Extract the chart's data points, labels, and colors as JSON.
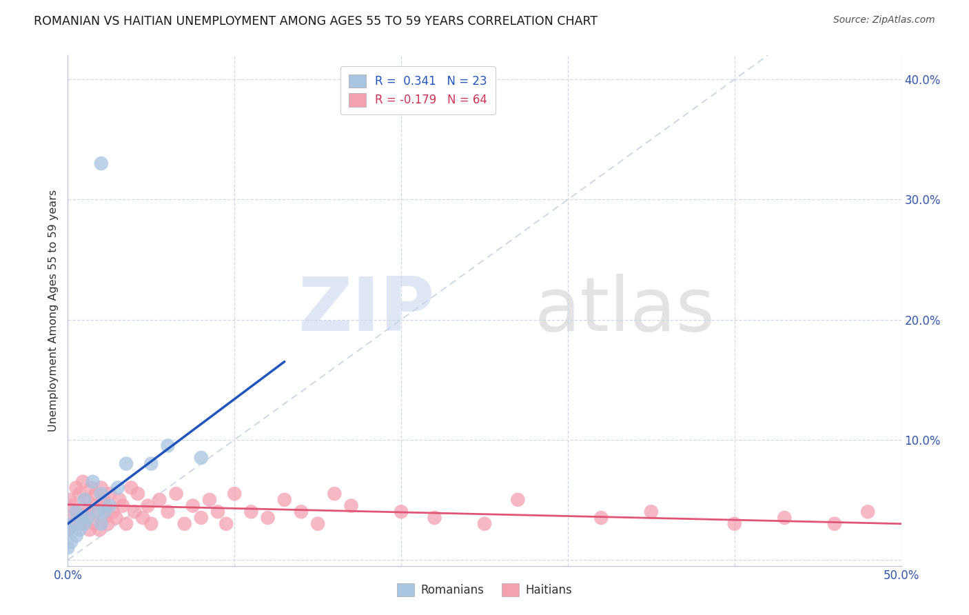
{
  "title": "ROMANIAN VS HAITIAN UNEMPLOYMENT AMONG AGES 55 TO 59 YEARS CORRELATION CHART",
  "source": "Source: ZipAtlas.com",
  "ylabel": "Unemployment Among Ages 55 to 59 years",
  "xlim": [
    0.0,
    0.5
  ],
  "ylim": [
    -0.005,
    0.42
  ],
  "xticks": [
    0.0,
    0.1,
    0.2,
    0.3,
    0.4,
    0.5
  ],
  "yticks": [
    0.0,
    0.1,
    0.2,
    0.3,
    0.4
  ],
  "romanian_color": "#a8c4e0",
  "haitian_color": "#f4a0b0",
  "romanian_line_color": "#2255bb",
  "haitian_line_color": "#e05575",
  "background_color": "#ffffff",
  "grid_color": "#d0d8e8",
  "romanian_data_x": [
    0.0,
    0.0,
    0.002,
    0.003,
    0.005,
    0.005,
    0.007,
    0.008,
    0.01,
    0.01,
    0.012,
    0.015,
    0.018,
    0.02,
    0.02,
    0.022,
    0.025,
    0.03,
    0.035,
    0.05,
    0.06,
    0.08,
    0.02
  ],
  "romanian_data_y": [
    0.01,
    0.025,
    0.015,
    0.03,
    0.02,
    0.04,
    0.025,
    0.035,
    0.03,
    0.05,
    0.035,
    0.065,
    0.04,
    0.03,
    0.055,
    0.04,
    0.045,
    0.06,
    0.08,
    0.08,
    0.095,
    0.085,
    0.33
  ],
  "haitian_data_x": [
    0.0,
    0.001,
    0.002,
    0.003,
    0.004,
    0.005,
    0.006,
    0.007,
    0.008,
    0.009,
    0.01,
    0.011,
    0.012,
    0.013,
    0.014,
    0.015,
    0.016,
    0.017,
    0.018,
    0.019,
    0.02,
    0.021,
    0.022,
    0.023,
    0.024,
    0.025,
    0.027,
    0.029,
    0.031,
    0.033,
    0.035,
    0.038,
    0.04,
    0.042,
    0.045,
    0.048,
    0.05,
    0.055,
    0.06,
    0.065,
    0.07,
    0.075,
    0.08,
    0.085,
    0.09,
    0.095,
    0.1,
    0.11,
    0.12,
    0.13,
    0.14,
    0.15,
    0.16,
    0.17,
    0.2,
    0.22,
    0.25,
    0.27,
    0.32,
    0.35,
    0.4,
    0.43,
    0.46,
    0.48
  ],
  "haitian_data_y": [
    0.025,
    0.05,
    0.035,
    0.045,
    0.03,
    0.06,
    0.04,
    0.055,
    0.03,
    0.065,
    0.035,
    0.05,
    0.04,
    0.025,
    0.06,
    0.045,
    0.03,
    0.055,
    0.04,
    0.025,
    0.06,
    0.05,
    0.035,
    0.045,
    0.03,
    0.055,
    0.04,
    0.035,
    0.05,
    0.045,
    0.03,
    0.06,
    0.04,
    0.055,
    0.035,
    0.045,
    0.03,
    0.05,
    0.04,
    0.055,
    0.03,
    0.045,
    0.035,
    0.05,
    0.04,
    0.03,
    0.055,
    0.04,
    0.035,
    0.05,
    0.04,
    0.03,
    0.055,
    0.045,
    0.04,
    0.035,
    0.03,
    0.05,
    0.035,
    0.04,
    0.03,
    0.035,
    0.03,
    0.04
  ],
  "rom_line_x0": 0.0,
  "rom_line_y0": 0.03,
  "rom_line_x1": 0.13,
  "rom_line_y1": 0.165,
  "hai_line_x0": 0.0,
  "hai_line_y0": 0.046,
  "hai_line_x1": 0.5,
  "hai_line_y1": 0.03
}
